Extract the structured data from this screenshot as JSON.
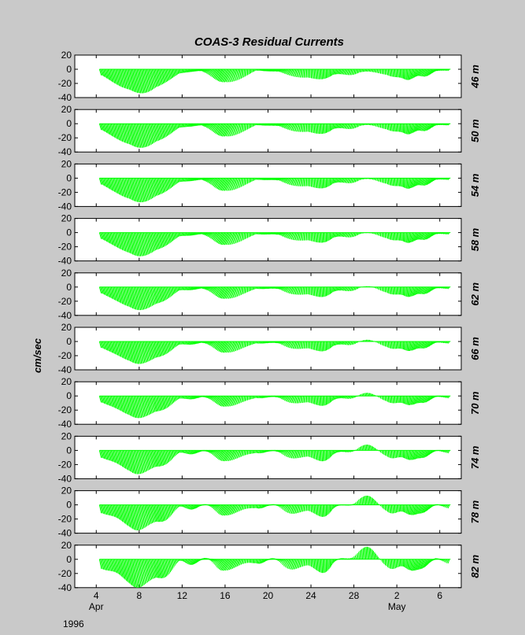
{
  "chart_data": {
    "type": "stick-plot",
    "title": "COAS-3  Residual Currents",
    "ylabel": "cm/sec",
    "year_label": "1996",
    "ylim": [
      -40,
      20
    ],
    "yticks": [
      20,
      0,
      -20,
      -40
    ],
    "xlim": [
      "1996-04-02",
      "1996-05-08"
    ],
    "xticks": [
      {
        "date": "1996-04-04",
        "label": "4",
        "sub": "Apr"
      },
      {
        "date": "1996-04-08",
        "label": "8",
        "sub": ""
      },
      {
        "date": "1996-04-12",
        "label": "12",
        "sub": ""
      },
      {
        "date": "1996-04-16",
        "label": "16",
        "sub": ""
      },
      {
        "date": "1996-04-20",
        "label": "20",
        "sub": ""
      },
      {
        "date": "1996-04-24",
        "label": "24",
        "sub": ""
      },
      {
        "date": "1996-04-28",
        "label": "28",
        "sub": ""
      },
      {
        "date": "1996-05-02",
        "label": "2",
        "sub": "May"
      },
      {
        "date": "1996-05-06",
        "label": "6",
        "sub": ""
      }
    ],
    "stick_color": "#00ff00",
    "series": [
      {
        "name": "46 m",
        "scale": 1.0,
        "north_mod": 0.0
      },
      {
        "name": "50 m",
        "scale": 1.0,
        "north_mod": 0.1
      },
      {
        "name": "54 m",
        "scale": 1.0,
        "north_mod": 0.15
      },
      {
        "name": "58 m",
        "scale": 0.98,
        "north_mod": 0.2
      },
      {
        "name": "62 m",
        "scale": 0.95,
        "north_mod": 0.3
      },
      {
        "name": "66 m",
        "scale": 0.92,
        "north_mod": 0.4
      },
      {
        "name": "70 m",
        "scale": 0.9,
        "north_mod": 0.55
      },
      {
        "name": "74 m",
        "scale": 0.95,
        "north_mod": 0.8
      },
      {
        "name": "78 m",
        "scale": 1.0,
        "north_mod": 1.1
      },
      {
        "name": "82 m",
        "scale": 1.1,
        "north_mod": 1.3
      }
    ]
  }
}
